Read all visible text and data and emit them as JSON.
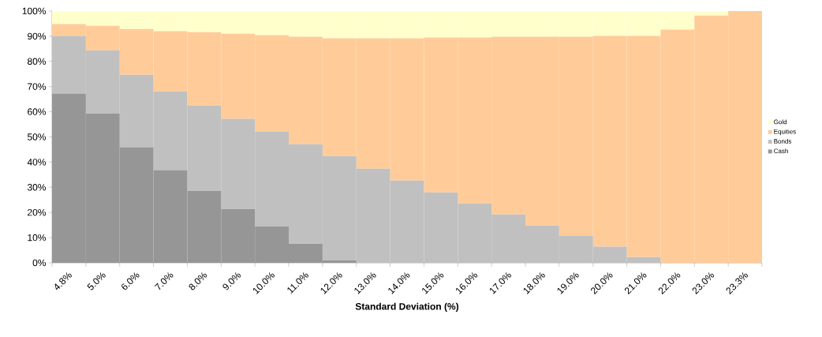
{
  "chart_data": {
    "type": "bar",
    "stacked": true,
    "xlabel": "Standard Deviation (%)",
    "categories": [
      "4.8%",
      "5.0%",
      "6.0%",
      "7.0%",
      "8.0%",
      "9.0%",
      "10.0%",
      "11.0%",
      "12.0%",
      "13.0%",
      "14.0%",
      "15.0%",
      "16.0%",
      "17.0%",
      "18.0%",
      "19.0%",
      "20.0%",
      "21.0%",
      "22.0%",
      "23.0%",
      "23.3%"
    ],
    "series": [
      {
        "name": "Cash",
        "color": "#969696",
        "values": [
          67.2,
          59.3,
          45.9,
          36.8,
          28.6,
          21.4,
          14.5,
          7.6,
          1.0,
          0,
          0,
          0,
          0,
          0,
          0,
          0,
          0,
          0,
          0,
          0,
          0
        ]
      },
      {
        "name": "Bonds",
        "color": "#c0c0c0",
        "values": [
          22.9,
          25.1,
          28.8,
          31.3,
          33.9,
          35.8,
          37.6,
          39.5,
          41.4,
          37.4,
          32.7,
          28.0,
          23.6,
          19.2,
          14.8,
          10.8,
          6.4,
          2.3,
          0,
          0,
          0
        ]
      },
      {
        "name": "Equities",
        "color": "#ffcc99",
        "values": [
          4.7,
          9.7,
          18.2,
          23.9,
          29.1,
          33.8,
          38.3,
          42.7,
          46.8,
          51.8,
          56.5,
          61.5,
          65.9,
          70.6,
          75.0,
          79.0,
          83.7,
          87.8,
          92.6,
          98.2,
          100
        ]
      },
      {
        "name": "Gold",
        "color": "#ffffcc",
        "values": [
          5.2,
          5.9,
          7.1,
          8.0,
          8.4,
          9.0,
          9.6,
          10.2,
          10.8,
          10.8,
          10.8,
          10.5,
          10.5,
          10.2,
          10.2,
          10.2,
          9.9,
          9.9,
          7.4,
          1.8,
          0
        ]
      }
    ],
    "ylim": [
      0,
      100
    ],
    "yticks": [
      {
        "value": 0,
        "label": "0%"
      },
      {
        "value": 10,
        "label": "10%"
      },
      {
        "value": 20,
        "label": "20%"
      },
      {
        "value": 30,
        "label": "30%"
      },
      {
        "value": 40,
        "label": "40%"
      },
      {
        "value": 50,
        "label": "50%"
      },
      {
        "value": 60,
        "label": "60%"
      },
      {
        "value": 70,
        "label": "70%"
      },
      {
        "value": 80,
        "label": "80%"
      },
      {
        "value": 90,
        "label": "90%"
      },
      {
        "value": 100,
        "label": "100%"
      }
    ],
    "legend": "right",
    "grid": false
  }
}
